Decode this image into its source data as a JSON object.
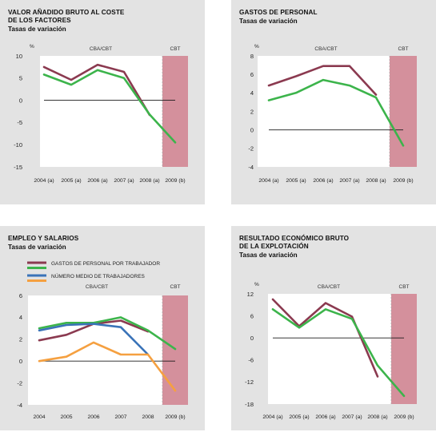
{
  "chart_data": [
    {
      "type": "line",
      "title": "VALOR AÑADIDO BRUTO AL COSTE\nDE LOS FACTORES",
      "subtitle": "Tasas de variación",
      "ylabel": "%",
      "ylim": [
        -15,
        10
      ],
      "yticks": [
        "10",
        "5",
        "0",
        "-5",
        "-10",
        "-15"
      ],
      "yticks_values": [
        10,
        5,
        0,
        -5,
        -10,
        -15
      ],
      "categories": [
        "2004 (a)",
        "2005 (a)",
        "2006 (a)",
        "2007 (a)",
        "2008 (a)",
        "2009 (b)"
      ],
      "region_labels": [
        "CBA/CBT",
        "CBT"
      ],
      "series": [
        {
          "values": [
            7.5,
            4.6,
            8.0,
            6.4,
            -3.3,
            null
          ],
          "color": "#8b3a50"
        },
        {
          "values": [
            5.8,
            3.5,
            6.8,
            5.0,
            -3.2,
            -9.5
          ],
          "color": "#3cb44b"
        }
      ]
    },
    {
      "type": "line",
      "title": "GASTOS DE PERSONAL",
      "subtitle": "Tasas de variación",
      "ylabel": "%",
      "ylim": [
        -4,
        8
      ],
      "yticks": [
        "8",
        "6",
        "4",
        "2",
        "0",
        "-2",
        "-4"
      ],
      "yticks_values": [
        8,
        6,
        4,
        2,
        0,
        -2,
        -4
      ],
      "categories": [
        "2004 (a)",
        "2005 (a)",
        "2006 (a)",
        "2007 (a)",
        "2008 (a)",
        "2009 (b)"
      ],
      "region_labels": [
        "CBA/CBT",
        "CBT"
      ],
      "series": [
        {
          "values": [
            4.8,
            5.8,
            6.9,
            6.9,
            3.8,
            null
          ],
          "color": "#8b3a50"
        },
        {
          "values": [
            3.2,
            4.0,
            5.4,
            4.8,
            3.5,
            -1.7
          ],
          "color": "#3cb44b"
        }
      ]
    },
    {
      "type": "line",
      "title": "EMPLEO Y SALARIOS",
      "subtitle": "Tasas de variación",
      "ylabel": "",
      "ylim": [
        -4,
        6
      ],
      "yticks": [
        "6",
        "4",
        "2",
        "0",
        "-2",
        "-4"
      ],
      "yticks_values": [
        6,
        4,
        2,
        0,
        -2,
        -4
      ],
      "categories": [
        "2004",
        "2005",
        "2006",
        "2007",
        "2008",
        "2009 (b)"
      ],
      "region_labels": [
        "CBA/CBT",
        "CBT"
      ],
      "legend": [
        {
          "label": "GASTOS DE PERSONAL POR TRABAJADOR",
          "color": "#8b3a50"
        },
        {
          "label": "",
          "color": "#3cb44b"
        },
        {
          "label": "NÚMERO MEDIO DE TRABAJADORES",
          "color": "#3a73b8"
        },
        {
          "label": "",
          "color": "#f5a040"
        }
      ],
      "series": [
        {
          "values": [
            1.9,
            2.4,
            3.4,
            3.7,
            2.7,
            null
          ],
          "color": "#8b3a50"
        },
        {
          "values": [
            3.0,
            3.5,
            3.5,
            4.0,
            2.8,
            1.1
          ],
          "color": "#3cb44b"
        },
        {
          "values": [
            2.8,
            3.3,
            3.4,
            3.1,
            0.6,
            null
          ],
          "color": "#3a73b8"
        },
        {
          "values": [
            0.0,
            0.4,
            1.7,
            0.6,
            0.6,
            -2.7
          ],
          "color": "#f5a040"
        }
      ]
    },
    {
      "type": "line",
      "title": "RESULTADO ECONÓMICO BRUTO\nDE LA EXPLOTACIÓN",
      "subtitle": "Tasas de variación",
      "ylabel": "%",
      "ylim": [
        -18,
        12
      ],
      "yticks": [
        "12",
        "6",
        "0",
        "-6",
        "-12",
        "-18"
      ],
      "yticks_values": [
        12,
        6,
        0,
        -6,
        -12,
        -18
      ],
      "categories": [
        "2004 (a)",
        "2005 (a)",
        "2006 (a)",
        "2007 (a)",
        "2008 (a)",
        "2009 (b)"
      ],
      "region_labels": [
        "CBA/CBT",
        "CBT"
      ],
      "series": [
        {
          "values": [
            10.5,
            3.2,
            9.5,
            5.8,
            -10.5,
            null
          ],
          "color": "#8b3a50"
        },
        {
          "values": [
            7.8,
            2.8,
            7.8,
            5.2,
            -7.5,
            -15.8
          ],
          "color": "#3cb44b"
        }
      ]
    }
  ]
}
